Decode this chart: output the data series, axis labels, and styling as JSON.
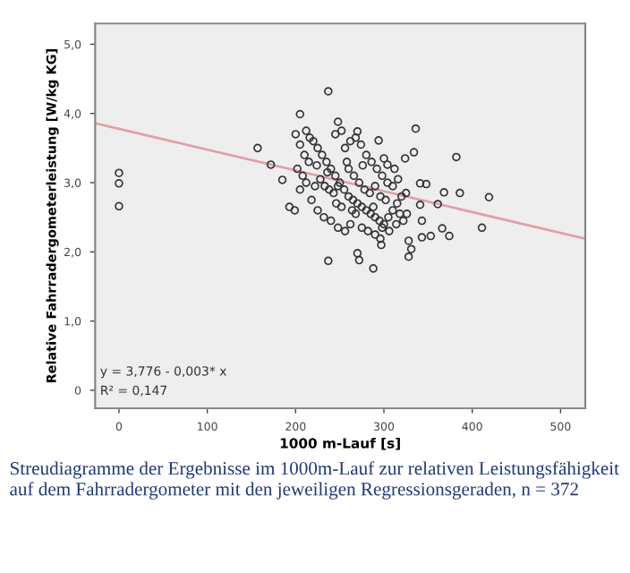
{
  "chart_data": {
    "type": "scatter",
    "xlabel": "1000 m-Lauf [s]",
    "ylabel": "Relative Fahrradergometerleistung [W/kg KG]",
    "annotations": [
      "y = 3,776 - 0,003* x",
      "R² = 0,147",
      "Streudiagramme der Ergebnisse im 1000m-Lauf zur relativen Leistungsfähigkeit auf dem Fahrradergometer mit den jeweiligen Regressionsgeraden, n = 372"
    ],
    "xlim": [
      -27,
      528
    ],
    "ylim": [
      -0.26,
      5.3
    ],
    "xticks": [
      0,
      100,
      200,
      300,
      400,
      500
    ],
    "yticks": [
      {
        "value": 0,
        "label": "0"
      },
      {
        "value": 1,
        "label": "1,0"
      },
      {
        "value": 2,
        "label": "2,0"
      },
      {
        "value": 3,
        "label": "3,0"
      },
      {
        "value": 4,
        "label": "4,0"
      },
      {
        "value": 5,
        "label": "5,0"
      }
    ],
    "grid": false,
    "series": [
      {
        "color": "#333333",
        "marker": "circle",
        "x": [
          0,
          0,
          0,
          237,
          157,
          172,
          336,
          382,
          419,
          411,
          386,
          368,
          366,
          374,
          237,
          270,
          272,
          288,
          328,
          331,
          328,
          343,
          353,
          296,
          297,
          205,
          248,
          185,
          193,
          199,
          341,
          348,
          341,
          361,
          343,
          334,
          324,
          270,
          294,
          304,
          200,
          205,
          210,
          215,
          202,
          208,
          212,
          220,
          225,
          230,
          235,
          240,
          245,
          250,
          228,
          233,
          238,
          243,
          248,
          255,
          260,
          265,
          270,
          275,
          280,
          285,
          290,
          295,
          300,
          305,
          310,
          315,
          320,
          325,
          218,
          225,
          232,
          240,
          248,
          256,
          262,
          268,
          275,
          282,
          290,
          298,
          306,
          314,
          322,
          256,
          262,
          268,
          274,
          280,
          286,
          292,
          298,
          304,
          310,
          316,
          260,
          266,
          272,
          278,
          284,
          290,
          296,
          302,
          212,
          216,
          245,
          252,
          258,
          224,
          236,
          246,
          252,
          264,
          276,
          288,
          300,
          312,
          318,
          326,
          205,
          222
        ],
        "values": [
          3.14,
          2.99,
          2.66,
          4.32,
          3.5,
          3.26,
          3.78,
          3.37,
          2.79,
          2.35,
          2.85,
          2.86,
          2.34,
          2.23,
          1.87,
          1.98,
          1.88,
          1.76,
          1.93,
          2.04,
          2.16,
          2.21,
          2.23,
          2.19,
          2.1,
          3.99,
          3.88,
          3.04,
          2.65,
          2.6,
          2.99,
          2.98,
          2.68,
          2.69,
          2.45,
          3.44,
          3.35,
          3.74,
          3.61,
          3.26,
          3.7,
          3.55,
          3.4,
          3.3,
          3.2,
          3.1,
          3.0,
          3.6,
          3.5,
          3.4,
          3.3,
          3.2,
          3.1,
          3.0,
          3.05,
          2.95,
          2.9,
          2.85,
          2.95,
          2.9,
          2.8,
          2.75,
          2.7,
          2.65,
          2.6,
          2.55,
          2.5,
          2.45,
          2.4,
          2.5,
          2.6,
          2.7,
          2.8,
          2.85,
          2.75,
          2.6,
          2.5,
          2.45,
          2.35,
          2.3,
          2.4,
          2.55,
          2.35,
          2.3,
          2.25,
          2.35,
          2.3,
          2.4,
          2.45,
          3.5,
          3.6,
          3.65,
          3.55,
          3.4,
          3.3,
          3.2,
          3.1,
          3.0,
          2.95,
          3.05,
          3.2,
          3.1,
          3.0,
          2.9,
          2.85,
          2.95,
          2.8,
          2.75,
          3.75,
          3.65,
          3.7,
          3.75,
          3.3,
          3.25,
          3.15,
          2.7,
          2.65,
          2.6,
          3.25,
          2.65,
          3.35,
          3.2,
          2.55,
          2.55,
          2.9,
          2.95
        ]
      },
      {
        "type": "line",
        "color": "#e0a0a8",
        "marker": "none",
        "x": [
          -27,
          528
        ],
        "values": [
          3.86,
          2.19
        ]
      }
    ]
  }
}
